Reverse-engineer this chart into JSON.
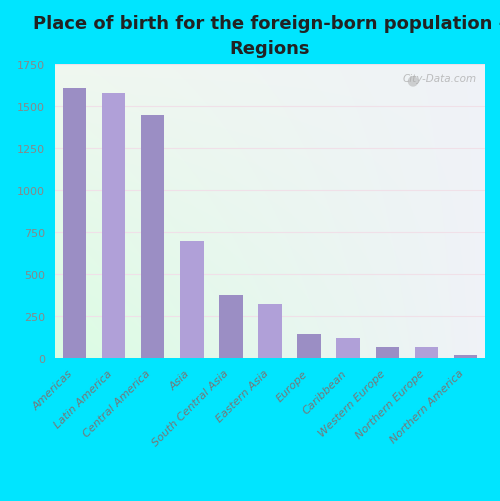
{
  "title": "Place of birth for the foreign-born population -\nRegions",
  "categories": [
    "Americas",
    "Latin America",
    "Central America",
    "Asia",
    "South Central Asia",
    "Eastern Asia",
    "Europe",
    "Caribbean",
    "Western Europe",
    "Northern Europe",
    "Northern America"
  ],
  "values": [
    1610,
    1580,
    1450,
    695,
    375,
    320,
    140,
    120,
    68,
    65,
    20
  ],
  "bar_color_odd": "#9b8ec4",
  "bar_color_even": "#b0a0d8",
  "ylim": [
    0,
    1750
  ],
  "yticks": [
    0,
    250,
    500,
    750,
    1000,
    1250,
    1500,
    1750
  ],
  "bg_topleft": "#e8f5ee",
  "bg_topright": "#f0f8f0",
  "bg_bottomleft": "#c8ecd8",
  "bg_bottomright": "#e8f0f8",
  "grid_color": "#e0ece0",
  "watermark": "City-Data.com",
  "background_outer": "#00e5ff",
  "title_fontsize": 13,
  "tick_fontsize": 8,
  "bar_width": 0.6
}
